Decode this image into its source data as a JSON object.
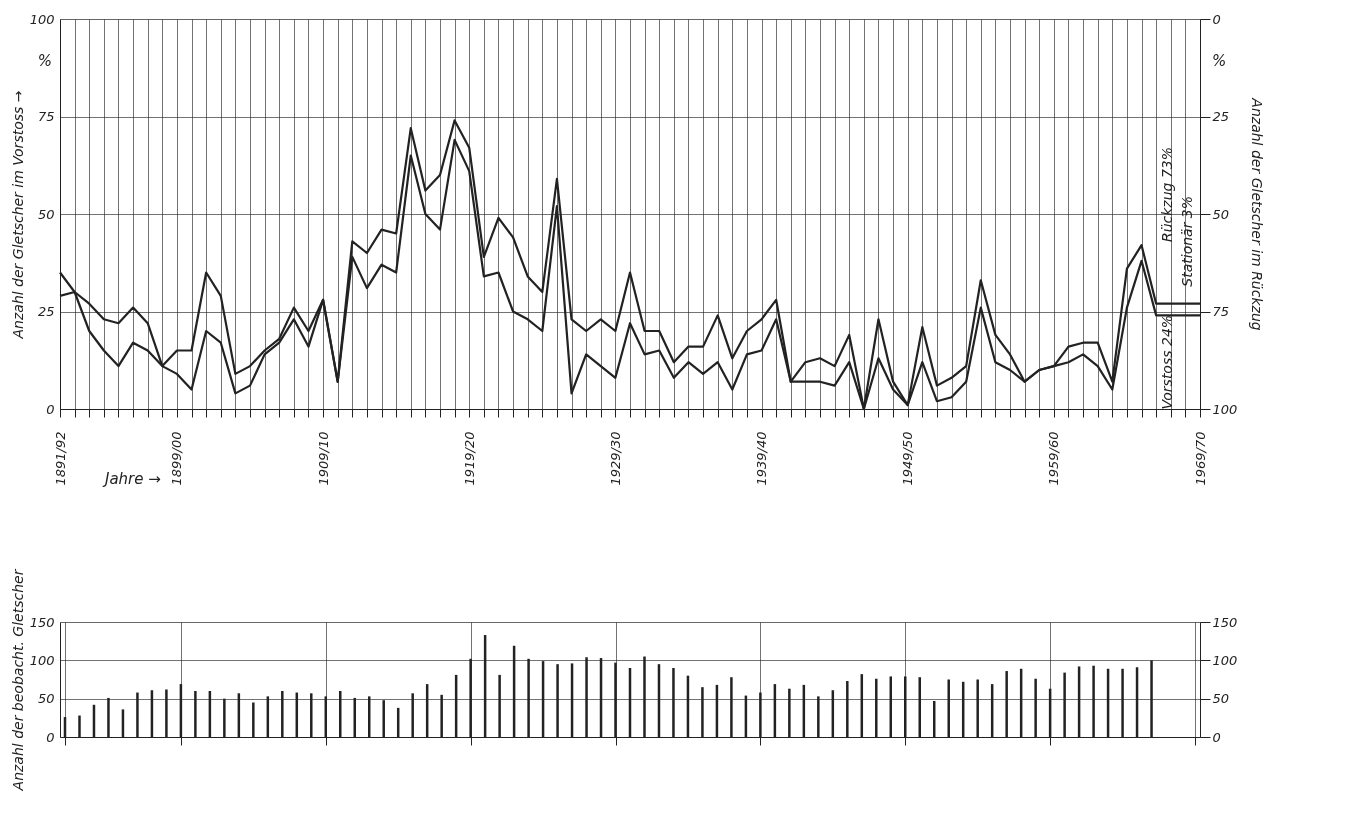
{
  "chart_data": [
    {
      "type": "line",
      "ylabel": "Anzahl der Gletscher im Vorstoss →",
      "y2label": "Anzahl der Gletscher im Rückzug",
      "categories": [
        "1891/92",
        null,
        null,
        null,
        null,
        null,
        null,
        null,
        "1899/00",
        null,
        null,
        null,
        null,
        null,
        null,
        null,
        null,
        null,
        "1909/10",
        null,
        null,
        null,
        null,
        null,
        null,
        null,
        null,
        null,
        "1919/20",
        null,
        null,
        null,
        null,
        null,
        null,
        null,
        null,
        null,
        "1929/30",
        null,
        null,
        null,
        null,
        null,
        null,
        null,
        null,
        null,
        "1939/40",
        null,
        null,
        null,
        null,
        null,
        null,
        null,
        null,
        null,
        "1949/50",
        null,
        null,
        null,
        null,
        null,
        null,
        null,
        null,
        null,
        "1959/60",
        null,
        null,
        null,
        null,
        null,
        null,
        null,
        null,
        null,
        "1969/70"
      ],
      "series": [
        {
          "color": "#222222",
          "values": [
            35,
            30,
            27,
            23,
            22,
            26,
            22,
            11,
            15,
            15,
            35,
            29,
            9,
            11,
            15,
            18,
            26,
            20,
            28,
            7,
            43,
            40,
            46,
            45,
            72,
            56,
            60,
            74,
            67,
            39,
            49,
            44,
            34,
            30,
            59,
            23,
            20,
            23,
            20,
            35,
            20,
            20,
            12,
            16,
            16,
            24,
            13,
            20,
            23,
            28,
            7,
            12,
            13,
            11,
            19,
            0,
            23,
            7,
            1,
            21,
            6,
            8,
            11,
            33,
            19,
            14,
            7,
            10,
            11,
            16,
            17,
            17,
            7,
            36,
            42,
            27,
            27,
            27,
            27
          ]
        },
        {
          "color": "#222222",
          "values": [
            29,
            30,
            20,
            15,
            11,
            17,
            15,
            11,
            9,
            5,
            20,
            17,
            4,
            6,
            14,
            17,
            23,
            16,
            28,
            7,
            39,
            31,
            37,
            35,
            65,
            50,
            46,
            69,
            61,
            34,
            35,
            25,
            23,
            20,
            52,
            4,
            14,
            11,
            8,
            22,
            14,
            15,
            8,
            12,
            9,
            12,
            5,
            14,
            15,
            23,
            7,
            7,
            7,
            6,
            12,
            0,
            13,
            5,
            1,
            12,
            2,
            3,
            7,
            26,
            12,
            10,
            7,
            10,
            11,
            12,
            14,
            11,
            5,
            26,
            38,
            24,
            24,
            24,
            24
          ]
        }
      ],
      "ylim": [
        0,
        100
      ],
      "yticks": [
        0,
        25,
        50,
        75,
        100
      ],
      "y2lim": [
        100,
        0
      ],
      "y2ticks": [
        0,
        25,
        50,
        75,
        100
      ],
      "grid": true,
      "annotations": [
        "%",
        "%",
        "Jahre →",
        "Rückzug 73%",
        "Stationär 3%",
        "Vorstoss 24%"
      ]
    },
    {
      "type": "bar",
      "ylabel": "Anzahl der beobacht. Gletscher",
      "categories": [
        "1891/92",
        null,
        null,
        null,
        null,
        null,
        null,
        null,
        "1899/00",
        null,
        null,
        null,
        null,
        null,
        null,
        null,
        null,
        null,
        "1909/10",
        null,
        null,
        null,
        null,
        null,
        null,
        null,
        null,
        null,
        "1919/20",
        null,
        null,
        null,
        null,
        null,
        null,
        null,
        null,
        null,
        "1929/30",
        null,
        null,
        null,
        null,
        null,
        null,
        null,
        null,
        null,
        "1939/40",
        null,
        null,
        null,
        null,
        null,
        null,
        null,
        null,
        null,
        "1949/50",
        null,
        null,
        null,
        null,
        null,
        null,
        null,
        null,
        null,
        "1959/60",
        null,
        null,
        null,
        null,
        null,
        null,
        null,
        null,
        null,
        "1969/70"
      ],
      "values": [
        26,
        28,
        42,
        51,
        36,
        58,
        61,
        62,
        69,
        60,
        60,
        50,
        57,
        45,
        53,
        60,
        58,
        57,
        53,
        60,
        51,
        53,
        48,
        38,
        57,
        69,
        55,
        81,
        102,
        133,
        81,
        119,
        102,
        99,
        95,
        96,
        104,
        103,
        97,
        90,
        105,
        95,
        90,
        80,
        65,
        68,
        78,
        54,
        58,
        69,
        63,
        68,
        53,
        61,
        73,
        82,
        76,
        79,
        79,
        78,
        47,
        75,
        72,
        75,
        69,
        86,
        89,
        76,
        63,
        84,
        92,
        93,
        89,
        89,
        91,
        100,
        null,
        null,
        null
      ],
      "color": "#222222",
      "ylim": [
        0,
        150
      ],
      "yticks": [
        0,
        50,
        100,
        150
      ],
      "y2lim": [
        0,
        150
      ],
      "y2ticks": [
        0,
        50,
        100,
        150
      ],
      "grid": true,
      "tick_labels": "y"
    }
  ]
}
